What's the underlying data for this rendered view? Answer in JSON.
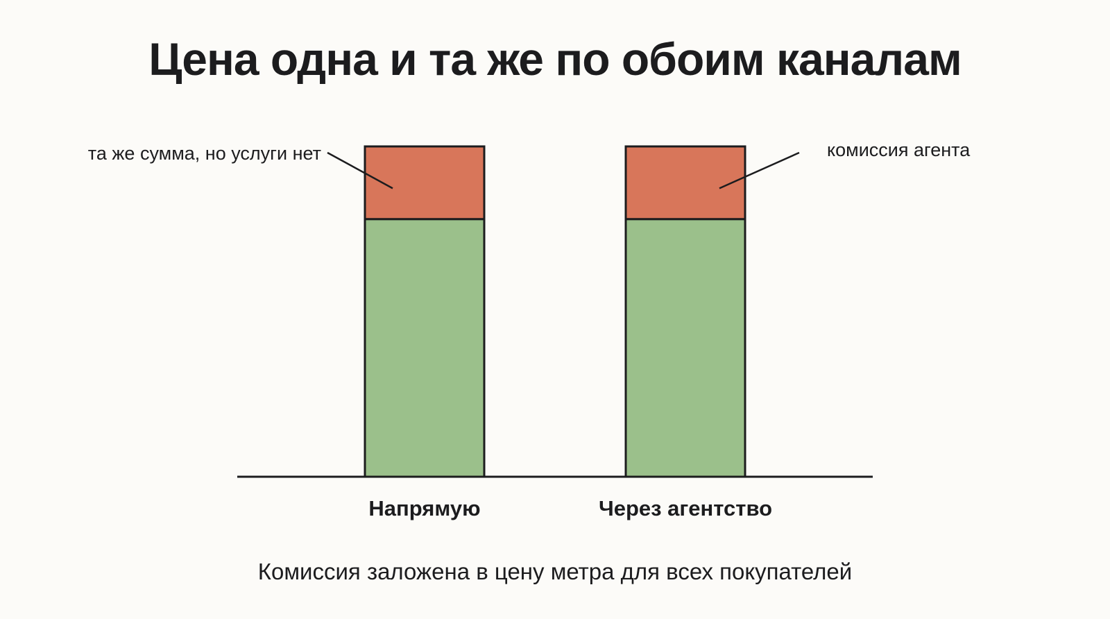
{
  "slide": {
    "title": "Цена одна и та же по обоим каналам",
    "caption": "Комиссия заложена в цену метра для всех покупателей"
  },
  "chart_data": {
    "type": "bar",
    "stacked": true,
    "categories": [
      "Напрямую",
      "Через агентство"
    ],
    "series": [
      {
        "name": "",
        "values": [
          78,
          78
        ],
        "color": "#9bc08b"
      },
      {
        "name": "",
        "values": [
          22,
          22
        ],
        "color": "#d8765a"
      }
    ],
    "annotations": [
      {
        "text": "та же сумма, но услуги нет",
        "category": 0,
        "series": 1
      },
      {
        "text": "комиссия агента",
        "category": 1,
        "series": 1
      }
    ],
    "ylim": [
      0,
      100
    ],
    "grid": false,
    "legend": "none",
    "title": "",
    "xlabel": "",
    "ylabel": ""
  }
}
